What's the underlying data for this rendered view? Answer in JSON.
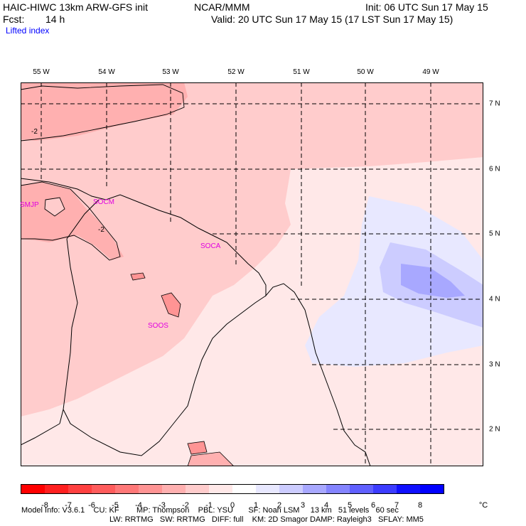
{
  "header": {
    "model": "HAIC-HIWC 13km ARW-GFS init",
    "org": "NCAR/MMM",
    "init": "Init: 06 UTC Sun 17 May 15",
    "fcst_label": "Fcst:",
    "fcst_value": "14 h",
    "valid": "Valid: 20 UTC Sun 17 May 15 (17 LST Sun 17 May 15)",
    "field": "Lifted index"
  },
  "map": {
    "lon_labels": [
      "55 W",
      "54 W",
      "53 W",
      "52 W",
      "51 W",
      "50 W",
      "49 W"
    ],
    "lat_labels": [
      "7 N",
      "6 N",
      "5 N",
      "4 N",
      "3 N",
      "2 N"
    ],
    "stations": [
      "SMJP",
      "SOCM",
      "SOCA",
      "SOOS"
    ],
    "contour_labels": [
      "-2",
      "-2"
    ]
  },
  "colorbar": {
    "ticks": [
      "-8",
      "-7",
      "-6",
      "-5",
      "-4",
      "-3",
      "-2",
      "-1",
      "0",
      "1",
      "2",
      "3",
      "4",
      "5",
      "6",
      "7",
      "8"
    ],
    "unit": "°C",
    "colors": [
      "#ff0000",
      "#ff2020",
      "#ff4040",
      "#ff5c5c",
      "#ff7878",
      "#ff9494",
      "#ffb0b0",
      "#ffcccc",
      "#ffe8e8",
      "#ffffff",
      "#e8e8ff",
      "#ccccff",
      "#a8a8ff",
      "#8484ff",
      "#6060ff",
      "#3c3cff",
      "#1010ff",
      "#0000ff"
    ]
  },
  "footer": {
    "line1": "Model Info: V3.6.1    CU: KF        MP: Thompson    PBL: YSU       SF: Noah LSM     13 km   51 levels   60 sec",
    "line2": "LW: RRTMG   SW: RRTMG   DIFF: full    KM: 2D Smagor DAMP: Rayleigh3   SFLAY: MM5"
  }
}
